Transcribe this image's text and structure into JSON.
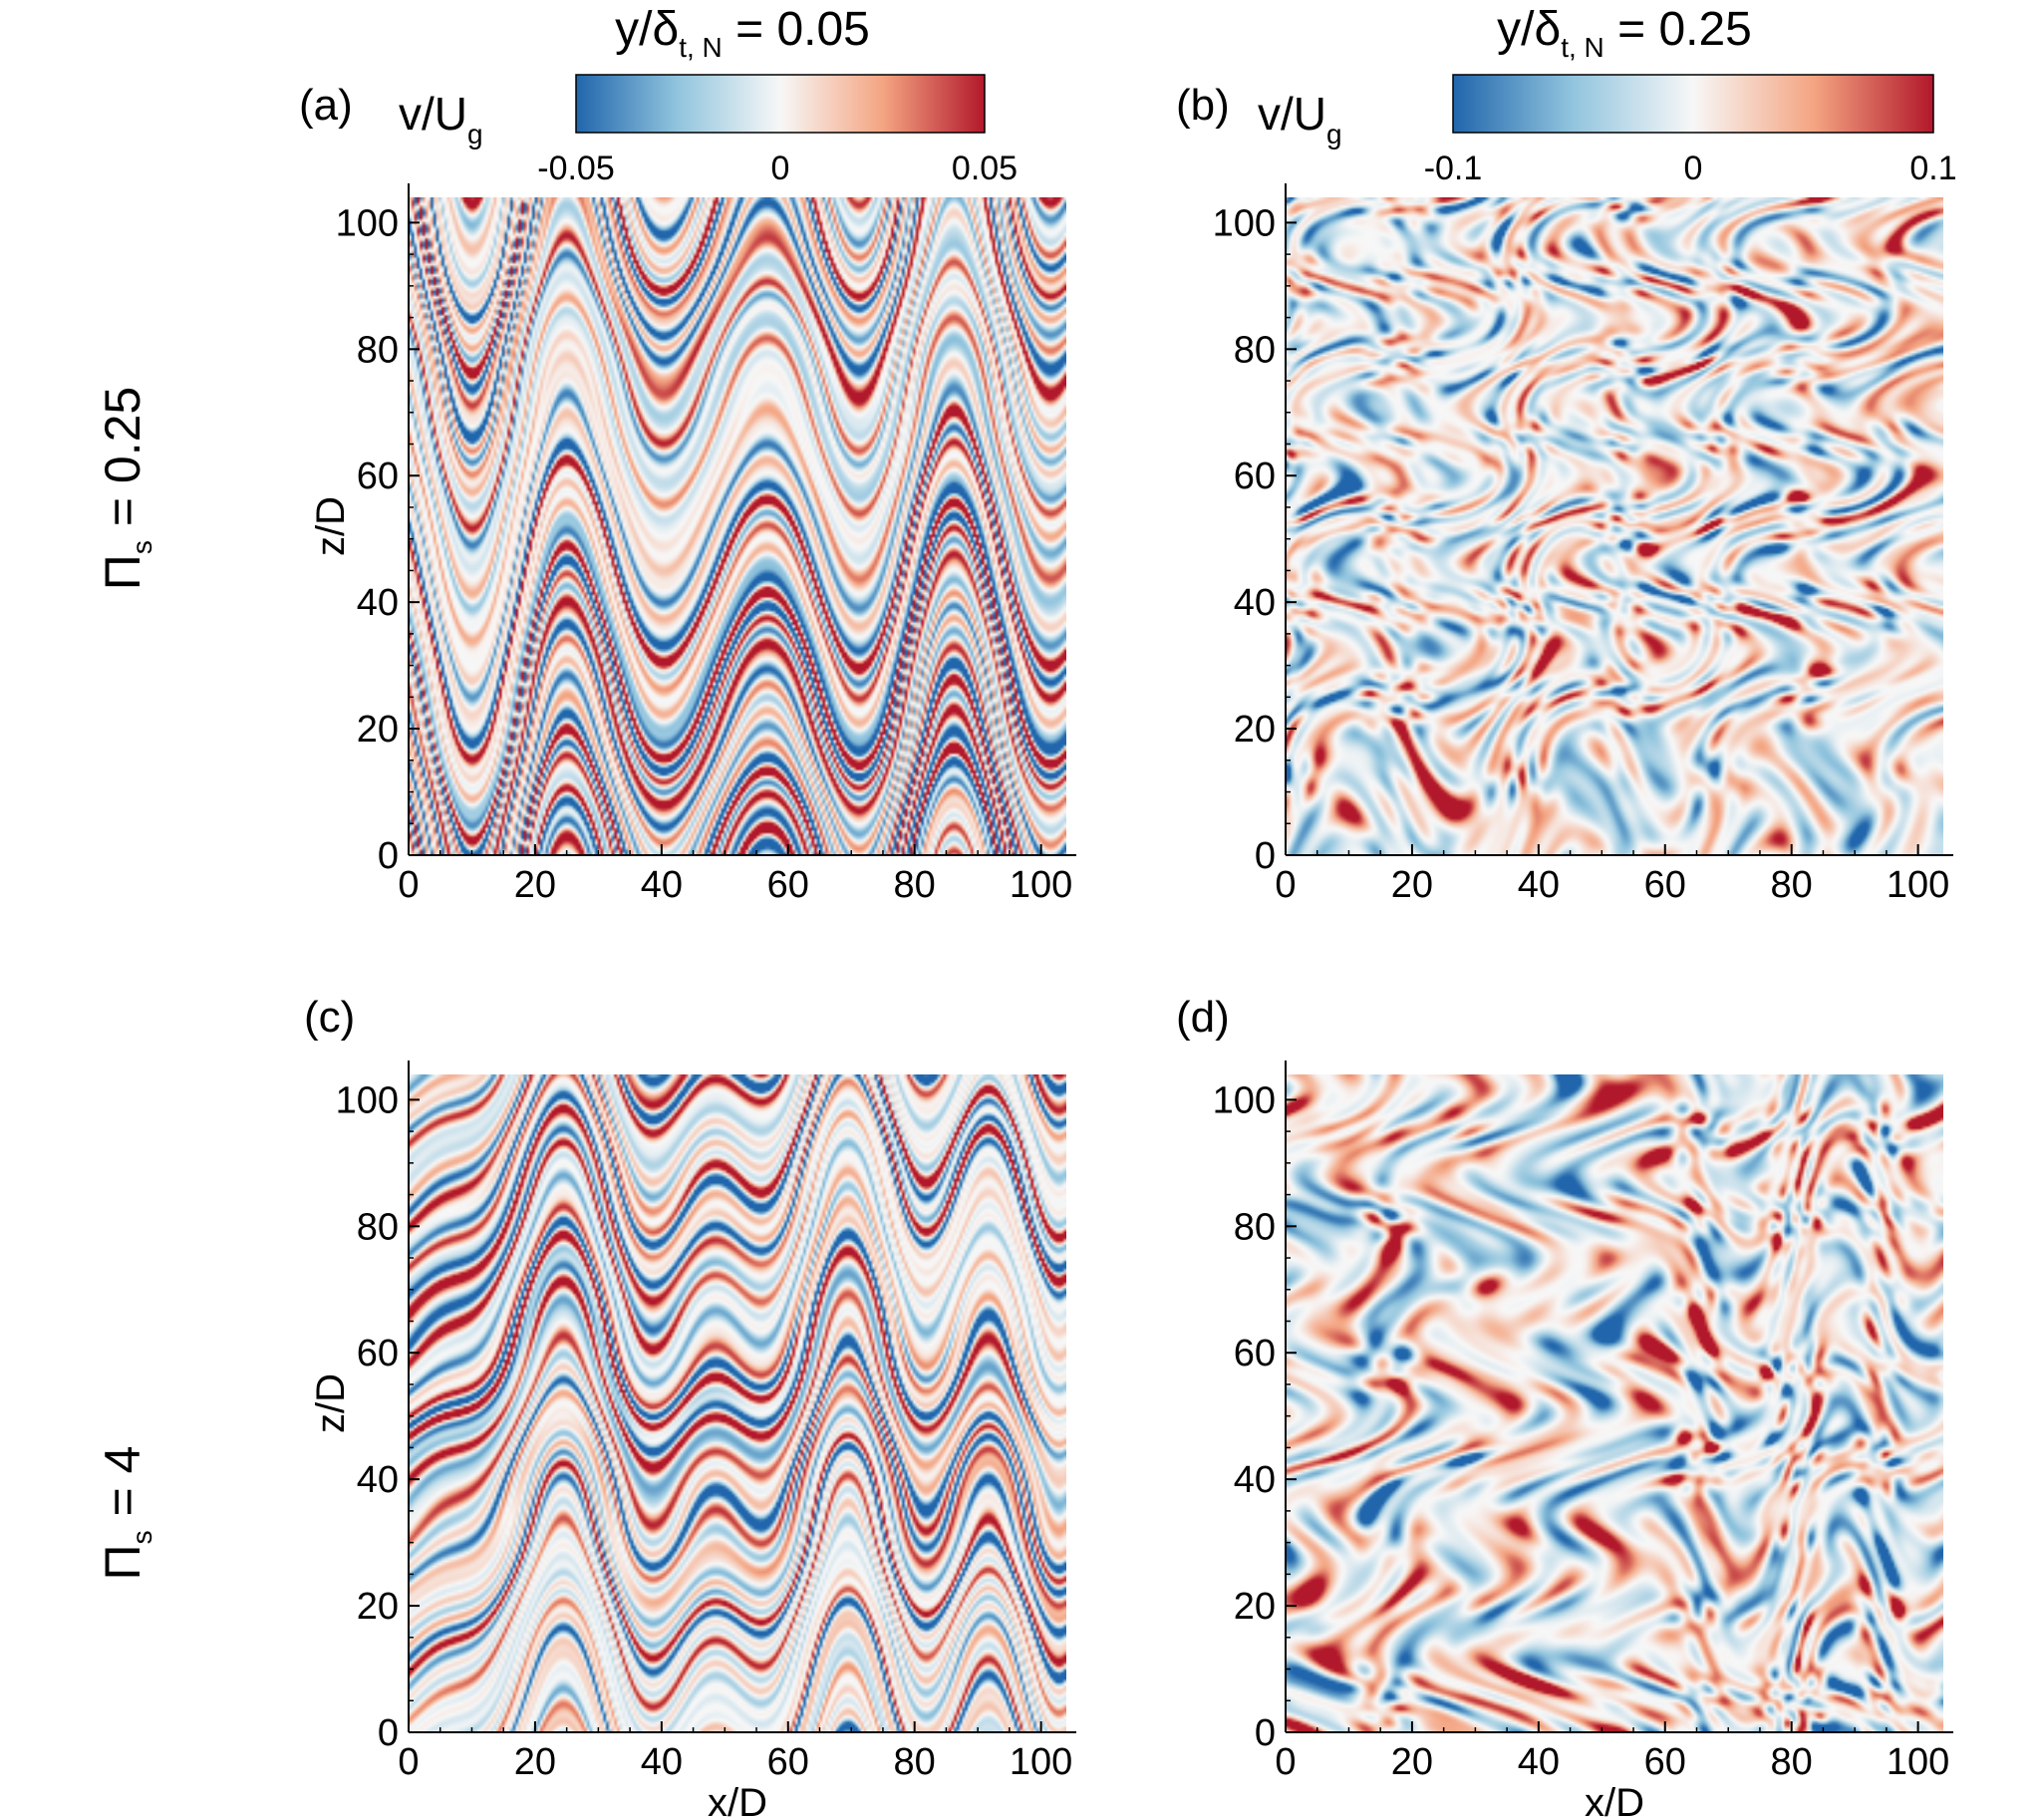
{
  "figure": {
    "column_titles": [
      {
        "base": "y/δ",
        "sub": "t, N",
        "rest": " = 0.05"
      },
      {
        "base": "y/δ",
        "sub": "t, N",
        "rest": " = 0.25"
      }
    ],
    "row_labels": [
      {
        "base": "Π",
        "sub": "s",
        "rest": " = 0.25"
      },
      {
        "base": "Π",
        "sub": "s",
        "rest": " = 4"
      }
    ],
    "colorbars": [
      {
        "label_base": "v/U",
        "label_sub": "g",
        "ticks": [
          "-0.05",
          "0",
          "0.05"
        ],
        "min": -0.05,
        "max": 0.05
      },
      {
        "label_base": "v/U",
        "label_sub": "g",
        "ticks": [
          "-0.1",
          "0",
          "0.1"
        ],
        "min": -0.1,
        "max": 0.1
      }
    ],
    "colors": {
      "negative": "#2166ac",
      "mid_negative": "#92c5de",
      "zero": "#f7f7f7",
      "mid_positive": "#f4a582",
      "positive": "#b2182b"
    }
  },
  "chart_data": [
    {
      "type": "heatmap",
      "panel": "(a)",
      "variable": "v/U_g",
      "xlabel": "",
      "ylabel": "z/D",
      "xlim": [
        0,
        104
      ],
      "ylim": [
        0,
        104
      ],
      "xticks": [
        "0",
        "20",
        "40",
        "60",
        "80",
        "100"
      ],
      "yticks": [
        "0",
        "20",
        "40",
        "60",
        "80",
        "100"
      ],
      "clim": [
        -0.05,
        0.05
      ],
      "structure": "streaky",
      "seed": 11
    },
    {
      "type": "heatmap",
      "panel": "(b)",
      "variable": "v/U_g",
      "xlabel": "",
      "ylabel": "",
      "xlim": [
        0,
        104
      ],
      "ylim": [
        0,
        104
      ],
      "xticks": [
        "0",
        "20",
        "40",
        "60",
        "80",
        "100"
      ],
      "yticks": [
        "0",
        "20",
        "40",
        "60",
        "80",
        "100"
      ],
      "clim": [
        -0.1,
        0.1
      ],
      "structure": "blobby",
      "seed": 23
    },
    {
      "type": "heatmap",
      "panel": "(c)",
      "variable": "v/U_g",
      "xlabel": "x/D",
      "ylabel": "z/D",
      "xlim": [
        0,
        104
      ],
      "ylim": [
        0,
        104
      ],
      "xticks": [
        "0",
        "20",
        "40",
        "60",
        "80",
        "100"
      ],
      "yticks": [
        "0",
        "20",
        "40",
        "60",
        "80",
        "100"
      ],
      "clim": [
        -0.05,
        0.05
      ],
      "structure": "streaky",
      "seed": 37
    },
    {
      "type": "heatmap",
      "panel": "(d)",
      "variable": "v/U_g",
      "xlabel": "x/D",
      "ylabel": "",
      "xlim": [
        0,
        104
      ],
      "ylim": [
        0,
        104
      ],
      "xticks": [
        "0",
        "20",
        "40",
        "60",
        "80",
        "100"
      ],
      "yticks": [
        "0",
        "20",
        "40",
        "60",
        "80",
        "100"
      ],
      "clim": [
        -0.1,
        0.1
      ],
      "structure": "blobby",
      "seed": 53
    }
  ]
}
